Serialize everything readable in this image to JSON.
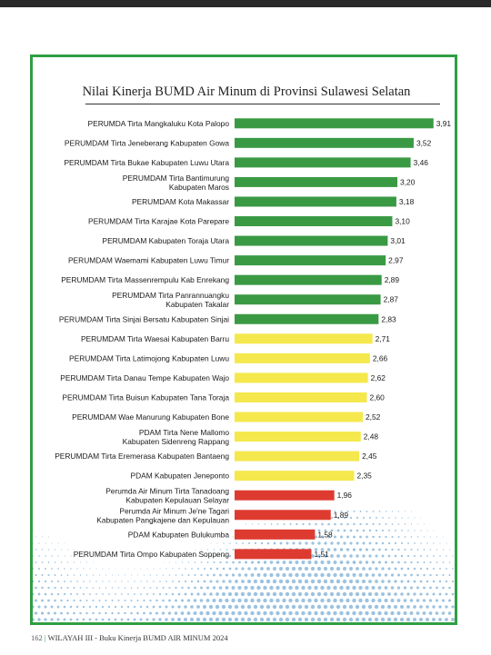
{
  "page": {
    "footer_page": "162",
    "footer_separator": "|",
    "footer_text": "WILAYAH III - Buku Kinerja BUMD AIR MINUM 2024"
  },
  "colors": {
    "sehat": "#3a9a44",
    "kurang_sehat": "#f4e84c",
    "sakit": "#de3b30",
    "frame": "#2f9e44"
  },
  "chart_data": {
    "type": "bar",
    "orientation": "horizontal",
    "title": "Nilai Kinerja BUMD Air Minum di Provinsi Sulawesi Selatan",
    "categories": [
      "PERUMDA Tirta Mangkaluku Kota Palopo",
      "PERUMDAM Tirta Jeneberang Kabupaten Gowa",
      "PERUMDAM Tirta Bukae Kabupaten Luwu Utara",
      "PERUMDAM Tirta Bantimurung\nKabupaten Maros",
      "PERUMDAM Kota Makassar",
      "PERUMDAM Tirta Karajae Kota Parepare",
      "PERUMDAM Kabupaten Toraja Utara",
      "PERUMDAM Waemami Kabupaten Luwu Timur",
      "PERUMDAM Tirta Massenrempulu Kab Enrekang",
      "PERUMDAM Tirta Panrannuangku\nKabupaten Takalar",
      "PERUMDAM Tirta Sinjai Bersatu Kabupaten Sinjai",
      "PERUMDAM Tirta Waesai Kabupaten Barru",
      "PERUMDAM Tirta Latimojong Kabupaten Luwu",
      "PERUMDAM Tirta Danau Tempe Kabupaten Wajo",
      "PERUMDAM Tirta Buisun Kabupaten Tana Toraja",
      "PERUMDAM Wae Manurung Kabupaten Bone",
      "PDAM Tirta Nene Mallomo\nKabupaten Sidenreng Rappang",
      "PERUMDAM Tirta Eremerasa Kabupaten Bantaeng",
      "PDAM Kabupaten Jeneponto",
      "Perumda Air Minum Tirta Tanadoang\nKabupaten Kepulauan Selayar",
      "Perumda Air Minum Je'ne Tagari\nKabupaten Pangkajene dan Kepulauan",
      "PDAM Kabupaten Bulukumba",
      "PERUMDAM Tirta Ompo Kabupaten Soppeng"
    ],
    "values": [
      3.91,
      3.52,
      3.46,
      3.2,
      3.18,
      3.1,
      3.01,
      2.97,
      2.89,
      2.87,
      2.83,
      2.71,
      2.66,
      2.62,
      2.6,
      2.52,
      2.48,
      2.45,
      2.35,
      1.96,
      1.89,
      1.58,
      1.51
    ],
    "value_labels": [
      "3,91",
      "3,52",
      "3,46",
      "3,20",
      "3,18",
      "3,10",
      "3,01",
      "2,97",
      "2,89",
      "2,87",
      "2,83",
      "2,71",
      "2,66",
      "2,62",
      "2,60",
      "2,52",
      "2,48",
      "2,45",
      "2,35",
      "1,96",
      "1,89",
      "1,58",
      "1,51"
    ],
    "bar_colors": [
      "sehat",
      "sehat",
      "sehat",
      "sehat",
      "sehat",
      "sehat",
      "sehat",
      "sehat",
      "sehat",
      "sehat",
      "sehat",
      "kurang_sehat",
      "kurang_sehat",
      "kurang_sehat",
      "kurang_sehat",
      "kurang_sehat",
      "kurang_sehat",
      "kurang_sehat",
      "kurang_sehat",
      "sakit",
      "sakit",
      "sakit",
      "sakit"
    ],
    "xlim": [
      0,
      4.2
    ],
    "grid": false,
    "legend": "none"
  }
}
